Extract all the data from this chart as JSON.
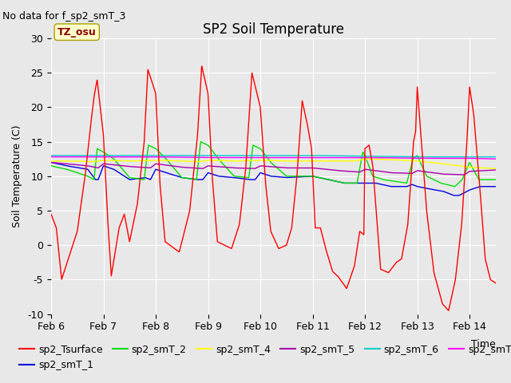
{
  "title": "SP2 Soil Temperature",
  "ylabel": "Soil Temperature (C)",
  "xlabel": "Time",
  "note": "No data for f_sp2_smT_3",
  "tz_label": "TZ_osu",
  "ylim": [
    -10,
    30
  ],
  "xlim": [
    0,
    8.5
  ],
  "x_tick_labels": [
    "Feb 6",
    "Feb 7",
    "Feb 8",
    "Feb 9",
    "Feb 10",
    "Feb 11",
    "Feb 12",
    "Feb 13",
    "Feb 14"
  ],
  "x_tick_positions": [
    0,
    1,
    2,
    3,
    4,
    5,
    6,
    7,
    8
  ],
  "yticks": [
    -10,
    -5,
    0,
    5,
    10,
    15,
    20,
    25,
    30
  ],
  "series_colors": {
    "sp2_Tsurface": "#ff0000",
    "sp2_smT_1": "#0000dd",
    "sp2_smT_2": "#00dd00",
    "sp2_smT_4": "#ffff00",
    "sp2_smT_5": "#aa00aa",
    "sp2_smT_6": "#00cccc",
    "sp2_smT_7": "#ff00ff"
  },
  "fig_bg": "#e8e8e8",
  "plot_bg": "#e8e8e8",
  "grid_color": "#ffffff",
  "title_fontsize": 12,
  "axis_fontsize": 9,
  "legend_fontsize": 9,
  "note_fontsize": 9
}
